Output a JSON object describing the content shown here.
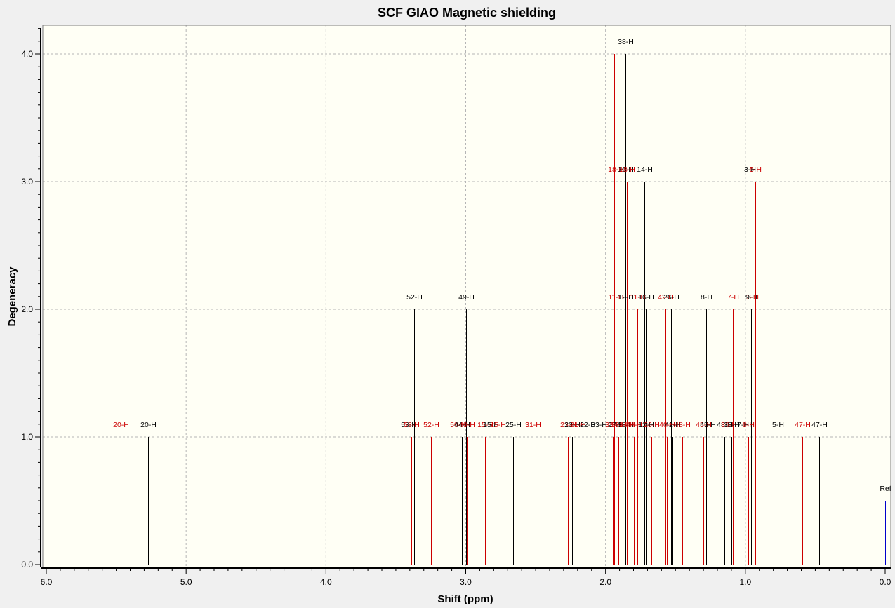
{
  "chart_data": {
    "type": "stick-spectrum",
    "title": "SCF GIAO Magnetic shielding",
    "xlabel": "Shift (ppm)",
    "ylabel": "Degeneracy",
    "xlim": [
      6.0,
      0.0
    ],
    "ylim": [
      0.0,
      4.2
    ],
    "x_ticks": [
      "6.0",
      "5.0",
      "4.0",
      "3.0",
      "2.0",
      "1.0",
      "0.0"
    ],
    "y_ticks": [
      "0.0",
      "1.0",
      "2.0",
      "3.0",
      "4.0"
    ],
    "x_reversed": true,
    "grid": true,
    "colors": {
      "background": "#fffff5",
      "black_series": "#000000",
      "red_series": "#cc0000",
      "reference": "#0000cc",
      "grid": "#b5b5b5"
    },
    "peaks": [
      {
        "x": 5.47,
        "y": 1,
        "label": "20-H",
        "color": "red"
      },
      {
        "x": 5.27,
        "y": 1,
        "label": "20-H",
        "color": "black"
      },
      {
        "x": 3.41,
        "y": 1,
        "label": "53-H",
        "color": "black"
      },
      {
        "x": 3.39,
        "y": 1,
        "label": "53-H",
        "color": "red"
      },
      {
        "x": 3.37,
        "y": 2,
        "label": "52-H",
        "color": "black"
      },
      {
        "x": 3.25,
        "y": 1,
        "label": "52-H",
        "color": "red"
      },
      {
        "x": 3.06,
        "y": 1,
        "label": "50-H",
        "color": "red"
      },
      {
        "x": 3.03,
        "y": 1,
        "label": "44-H",
        "color": "black"
      },
      {
        "x": 3.0,
        "y": 2,
        "label": "49-H",
        "color": "black"
      },
      {
        "x": 2.99,
        "y": 1,
        "label": "49-H",
        "color": "red"
      },
      {
        "x": 2.86,
        "y": 1,
        "label": "15-H",
        "color": "red"
      },
      {
        "x": 2.82,
        "y": 1,
        "label": "15-H",
        "color": "black"
      },
      {
        "x": 2.77,
        "y": 1,
        "label": "25-H",
        "color": "red"
      },
      {
        "x": 2.66,
        "y": 1,
        "label": "25-H",
        "color": "black"
      },
      {
        "x": 2.52,
        "y": 1,
        "label": "31-H",
        "color": "red"
      },
      {
        "x": 2.27,
        "y": 1,
        "label": "23-H",
        "color": "red"
      },
      {
        "x": 2.24,
        "y": 1,
        "label": "23-H",
        "color": "black"
      },
      {
        "x": 2.2,
        "y": 1,
        "label": "21-H",
        "color": "red"
      },
      {
        "x": 2.13,
        "y": 1,
        "label": "22-H",
        "color": "black"
      },
      {
        "x": 2.05,
        "y": 1,
        "label": "33-H",
        "color": "black"
      },
      {
        "x": 1.95,
        "y": 1,
        "label": "33-H",
        "color": "red"
      },
      {
        "x": 1.94,
        "y": 4,
        "label": "",
        "color": "red"
      },
      {
        "x": 1.93,
        "y": 3,
        "label": "18-H",
        "color": "red"
      },
      {
        "x": 1.93,
        "y": 2,
        "label": "11-H",
        "color": "red"
      },
      {
        "x": 1.93,
        "y": 1,
        "label": "27-H",
        "color": "black"
      },
      {
        "x": 1.91,
        "y": 1,
        "label": "30-H",
        "color": "red"
      },
      {
        "x": 1.86,
        "y": 4,
        "label": "38-H",
        "color": "black"
      },
      {
        "x": 1.86,
        "y": 3,
        "label": "16-H",
        "color": "black"
      },
      {
        "x": 1.86,
        "y": 2,
        "label": "12-H",
        "color": "black"
      },
      {
        "x": 1.86,
        "y": 1,
        "label": "38-H",
        "color": "black"
      },
      {
        "x": 1.85,
        "y": 3,
        "label": "18-H",
        "color": "red"
      },
      {
        "x": 1.85,
        "y": 1,
        "label": "14-H",
        "color": "red"
      },
      {
        "x": 1.8,
        "y": 1,
        "label": "44-H",
        "color": "red"
      },
      {
        "x": 1.77,
        "y": 2,
        "label": "11-H",
        "color": "red"
      },
      {
        "x": 1.72,
        "y": 3,
        "label": "14-H",
        "color": "black"
      },
      {
        "x": 1.71,
        "y": 2,
        "label": "16-H",
        "color": "black"
      },
      {
        "x": 1.71,
        "y": 1,
        "label": "12-H",
        "color": "black"
      },
      {
        "x": 1.67,
        "y": 1,
        "label": "26-H",
        "color": "red"
      },
      {
        "x": 1.57,
        "y": 2,
        "label": "42-H",
        "color": "red"
      },
      {
        "x": 1.56,
        "y": 1,
        "label": "40-H",
        "color": "red"
      },
      {
        "x": 1.53,
        "y": 2,
        "label": "26-H",
        "color": "black"
      },
      {
        "x": 1.52,
        "y": 1,
        "label": "42-H",
        "color": "black"
      },
      {
        "x": 1.45,
        "y": 1,
        "label": "48-H",
        "color": "red"
      },
      {
        "x": 1.3,
        "y": 1,
        "label": "45-H",
        "color": "red"
      },
      {
        "x": 1.28,
        "y": 2,
        "label": "8-H",
        "color": "black"
      },
      {
        "x": 1.27,
        "y": 1,
        "label": "45-H",
        "color": "black"
      },
      {
        "x": 1.15,
        "y": 1,
        "label": "48-H",
        "color": "black"
      },
      {
        "x": 1.12,
        "y": 1,
        "label": "35-H",
        "color": "red"
      },
      {
        "x": 1.1,
        "y": 1,
        "label": "35-H",
        "color": "black"
      },
      {
        "x": 1.09,
        "y": 2,
        "label": "7-H",
        "color": "red"
      },
      {
        "x": 1.02,
        "y": 1,
        "label": "7-H",
        "color": "black"
      },
      {
        "x": 0.98,
        "y": 1,
        "label": "8-H",
        "color": "red"
      },
      {
        "x": 0.97,
        "y": 3,
        "label": "3-H",
        "color": "black"
      },
      {
        "x": 0.96,
        "y": 2,
        "label": "9-H",
        "color": "black"
      },
      {
        "x": 0.95,
        "y": 2,
        "label": "3-H",
        "color": "red"
      },
      {
        "x": 0.93,
        "y": 3,
        "label": "5-H",
        "color": "red"
      },
      {
        "x": 0.77,
        "y": 1,
        "label": "5-H",
        "color": "black"
      },
      {
        "x": 0.59,
        "y": 1,
        "label": "47-H",
        "color": "red"
      },
      {
        "x": 0.47,
        "y": 1,
        "label": "47-H",
        "color": "black"
      },
      {
        "x": 0.0,
        "y": 0.5,
        "label": "Ref",
        "color": "reference"
      }
    ]
  }
}
